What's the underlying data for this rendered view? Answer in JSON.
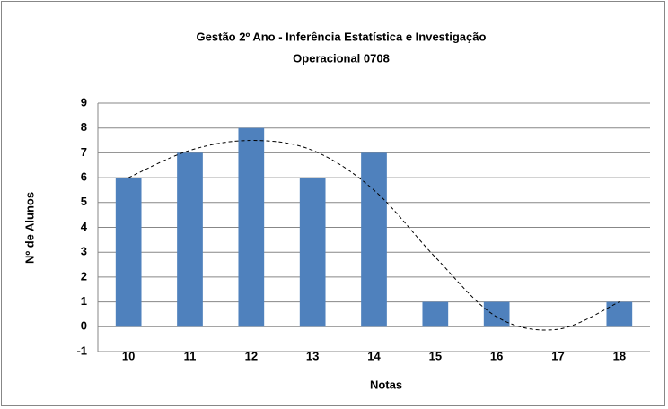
{
  "chart_data": {
    "type": "bar",
    "title": [
      "Gestão 2º Ano - Inferência Estatística e Investigação",
      "Operacional 0708"
    ],
    "x_label": "Notas",
    "y_label": "Nº de Alunos",
    "categories": [
      "10",
      "11",
      "12",
      "13",
      "14",
      "15",
      "16",
      "17",
      "18"
    ],
    "values": [
      6,
      7,
      8,
      6,
      7,
      1,
      1,
      0,
      1
    ],
    "color": "#4f81bd",
    "trendline": {
      "values": [
        6,
        7.1,
        7.5,
        7.1,
        5.5,
        2.8,
        0.4,
        -0.1,
        1
      ],
      "color": "#000000"
    },
    "ylim": [
      -1,
      9
    ],
    "yticks": [
      -1,
      0,
      1,
      2,
      3,
      4,
      5,
      6,
      7,
      8,
      9
    ],
    "grid": true
  }
}
